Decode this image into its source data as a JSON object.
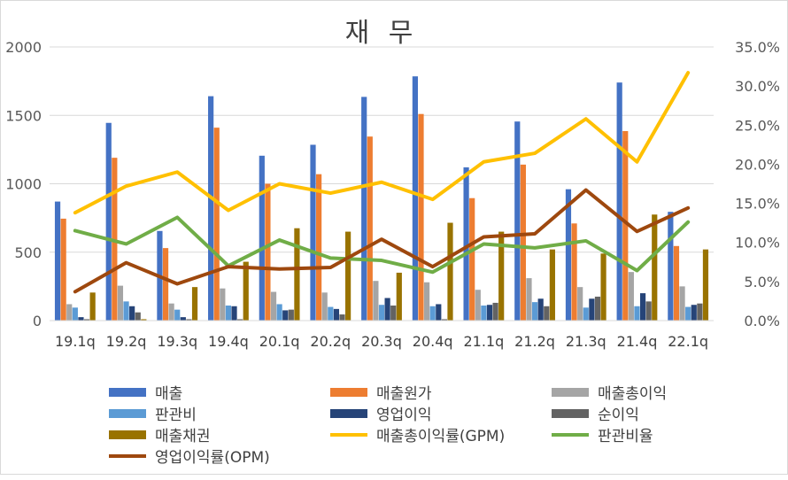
{
  "chart_data": {
    "type": "bar",
    "title": "재 무",
    "categories": [
      "19.1q",
      "19.2q",
      "19.3q",
      "19.4q",
      "20.1q",
      "20.2q",
      "20.3q",
      "20.4q",
      "21.1q",
      "21.2q",
      "21.3q",
      "21.4q",
      "22.1q"
    ],
    "ylim": [
      0,
      2000
    ],
    "yticks": [
      "0",
      "500",
      "1000",
      "1500",
      "2000"
    ],
    "ytick_values": [
      0,
      500,
      1000,
      1500,
      2000
    ],
    "y2lim": [
      0,
      0.35
    ],
    "y2ticks": [
      "0.0%",
      "5.0%",
      "10.0%",
      "15.0%",
      "20.0%",
      "25.0%",
      "30.0%",
      "35.0%"
    ],
    "y2tick_values": [
      0,
      0.05,
      0.1,
      0.15,
      0.2,
      0.25,
      0.3,
      0.35
    ],
    "grid": true,
    "legend_position": "bottom",
    "bar_series": [
      {
        "name": "매출",
        "color": "#4472C4",
        "values": [
          870,
          1445,
          655,
          1640,
          1205,
          1285,
          1635,
          1785,
          1120,
          1455,
          960,
          1740,
          795
        ]
      },
      {
        "name": "매출원가",
        "color": "#ED7D31",
        "values": [
          745,
          1190,
          530,
          1410,
          1000,
          1070,
          1345,
          1510,
          895,
          1140,
          710,
          1385,
          545
        ]
      },
      {
        "name": "매출총이익",
        "color": "#A5A5A5",
        "values": [
          120,
          255,
          125,
          235,
          210,
          205,
          290,
          280,
          225,
          310,
          245,
          355,
          250
        ]
      },
      {
        "name": "판관비",
        "color": "#5B9BD5",
        "values": [
          95,
          140,
          80,
          110,
          120,
          100,
          115,
          105,
          110,
          135,
          95,
          105,
          100
        ]
      },
      {
        "name": "영업이익",
        "color": "#264478",
        "values": [
          25,
          105,
          25,
          105,
          75,
          85,
          165,
          120,
          115,
          160,
          160,
          200,
          115
        ]
      },
      {
        "name": "순이익",
        "color": "#636363",
        "values": [
          10,
          60,
          10,
          10,
          80,
          45,
          110,
          10,
          130,
          105,
          175,
          140,
          125
        ]
      },
      {
        "name": "매출채권",
        "color": "#997300",
        "values": [
          205,
          10,
          245,
          430,
          675,
          650,
          350,
          715,
          650,
          520,
          490,
          775,
          520
        ]
      }
    ],
    "line_series": [
      {
        "name": "매출총이익률(GPM)",
        "color": "#FFC000",
        "values": [
          0.138,
          0.172,
          0.19,
          0.141,
          0.175,
          0.163,
          0.177,
          0.155,
          0.203,
          0.214,
          0.258,
          0.203,
          0.317
        ]
      },
      {
        "name": "판관비율",
        "color": "#70AD47",
        "values": [
          0.115,
          0.098,
          0.132,
          0.07,
          0.103,
          0.08,
          0.077,
          0.062,
          0.098,
          0.093,
          0.102,
          0.064,
          0.126
        ]
      },
      {
        "name": "영업이익률(OPM)",
        "color": "#9E480E",
        "values": [
          0.037,
          0.074,
          0.047,
          0.069,
          0.066,
          0.068,
          0.104,
          0.069,
          0.107,
          0.111,
          0.167,
          0.114,
          0.144
        ]
      }
    ]
  }
}
